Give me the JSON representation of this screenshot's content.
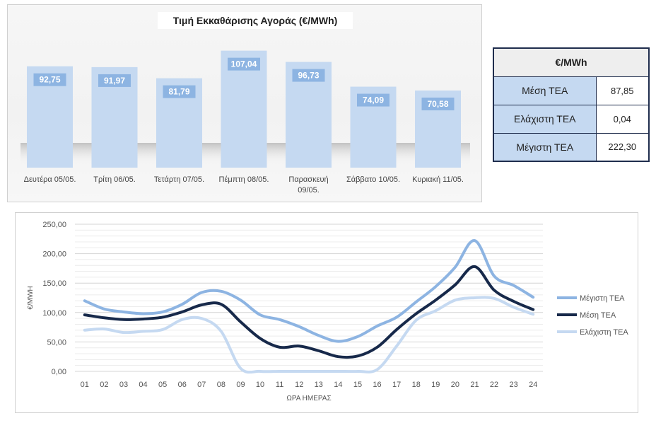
{
  "bar_chart": {
    "title": "Τιμή Εκκαθάρισης Αγοράς (€/MWh)"
  },
  "stats": {
    "header": "€/MWh",
    "rows": [
      {
        "label": "Μέση ΤΕΑ",
        "value": "87,85"
      },
      {
        "label": "Ελάχιστη ΤΕΑ",
        "value": "0,04"
      },
      {
        "label": "Μέγιστη ΤΕΑ",
        "value": "222,30"
      }
    ]
  },
  "line_chart": {
    "ylabel": "€/MWH",
    "xlabel": "ΩΡΑ ΗΜΕΡΑΣ",
    "legend": [
      "Μέγιστη ΤΕΑ",
      "Μέση ΤΕΑ",
      "Ελάχιστη ΤΕΑ"
    ]
  },
  "colors": {
    "bar_fill": "#c5d9f1",
    "bar_label_bg": "#8db4e2",
    "max_line": "#8db4e2",
    "mean_line": "#17294a",
    "min_line": "#c5d9f1",
    "table_border": "#1f2d4d"
  },
  "chart_data": [
    {
      "type": "bar",
      "title": "Τιμή Εκκαθάρισης Αγοράς (€/MWh)",
      "categories": [
        "Δευτέρα 05/05.",
        "Τρίτη 06/05.",
        "Τετάρτη 07/05.",
        "Πέμπτη 08/05.",
        "Παρασκευή 09/05.",
        "Σάββατο 10/05.",
        "Κυριακή 11/05."
      ],
      "category_lines": [
        [
          "Δευτέρα 05/05."
        ],
        [
          "Τρίτη 06/05."
        ],
        [
          "Τετάρτη 07/05."
        ],
        [
          "Πέμπτη 08/05."
        ],
        [
          "Παρασκευή",
          "09/05."
        ],
        [
          "Σάββατο 10/05."
        ],
        [
          "Κυριακή 11/05."
        ]
      ],
      "values": [
        92.75,
        91.97,
        81.79,
        107.04,
        96.73,
        74.09,
        70.58
      ],
      "value_labels": [
        "92,75",
        "91,97",
        "81,79",
        "107,04",
        "96,73",
        "74,09",
        "70,58"
      ],
      "grid": false
    },
    {
      "type": "line",
      "x": [
        "01",
        "02",
        "03",
        "04",
        "05",
        "06",
        "07",
        "08",
        "09",
        "10",
        "11",
        "12",
        "13",
        "14",
        "15",
        "16",
        "17",
        "18",
        "19",
        "20",
        "21",
        "22",
        "23",
        "24"
      ],
      "series": [
        {
          "name": "Μέγιστη ΤΕΑ",
          "values": [
            120,
            106,
            101,
            98,
            101,
            114,
            134,
            136,
            121,
            96,
            88,
            76,
            61,
            51,
            59,
            77,
            92,
            118,
            144,
            177,
            222.3,
            162,
            146,
            126
          ]
        },
        {
          "name": "Μέση ΤΕΑ",
          "values": [
            96,
            91,
            88,
            89,
            92,
            101,
            113,
            114,
            84,
            56,
            41,
            43,
            35,
            25,
            26,
            41,
            71,
            98,
            121,
            147,
            178,
            138,
            119,
            105
          ]
        },
        {
          "name": "Ελάχιστη ΤΕΑ",
          "values": [
            70,
            72,
            66,
            68,
            71,
            88,
            90,
            68,
            5,
            0.04,
            0.04,
            0.04,
            0.04,
            0.04,
            0.04,
            3,
            43,
            87,
            103,
            121,
            125,
            124,
            109,
            97
          ]
        }
      ],
      "yticks": [
        "0,00",
        "50,00",
        "100,00",
        "150,00",
        "200,00",
        "250,00"
      ],
      "ylim": [
        0,
        250
      ],
      "xlabel": "ΩΡΑ ΗΜΕΡΑΣ",
      "ylabel": "€/MWH",
      "grid": true,
      "legend_position": "right"
    }
  ]
}
